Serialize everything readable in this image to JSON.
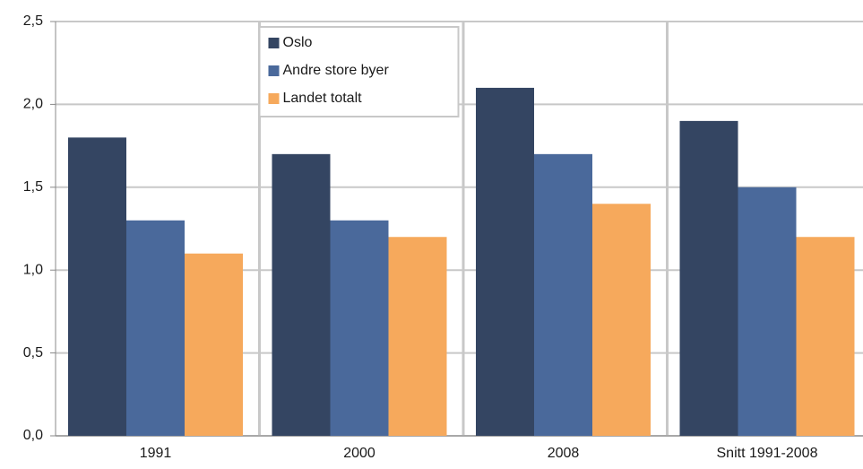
{
  "chart_data": {
    "type": "bar",
    "categories": [
      "1991",
      "2000",
      "2008",
      "Snitt 1991-2008"
    ],
    "series": [
      {
        "name": "Oslo",
        "color": "#344562",
        "values": [
          1.8,
          1.7,
          2.1,
          1.9
        ]
      },
      {
        "name": "Andre store byer",
        "color": "#4a699b",
        "values": [
          1.3,
          1.3,
          1.7,
          1.5
        ]
      },
      {
        "name": "Landet totalt",
        "color": "#f6a95c",
        "values": [
          1.1,
          1.2,
          1.4,
          1.2
        ]
      }
    ],
    "ylim": [
      0,
      2.5
    ],
    "yticks": [
      {
        "value": 0,
        "label": "0,0"
      },
      {
        "value": 0.5,
        "label": "0,5"
      },
      {
        "value": 1,
        "label": "1,0"
      },
      {
        "value": 1.5,
        "label": "1,5"
      },
      {
        "value": 2,
        "label": "2,0"
      },
      {
        "value": 2.5,
        "label": "2,5"
      }
    ],
    "grid": true,
    "legend": "top-center"
  }
}
